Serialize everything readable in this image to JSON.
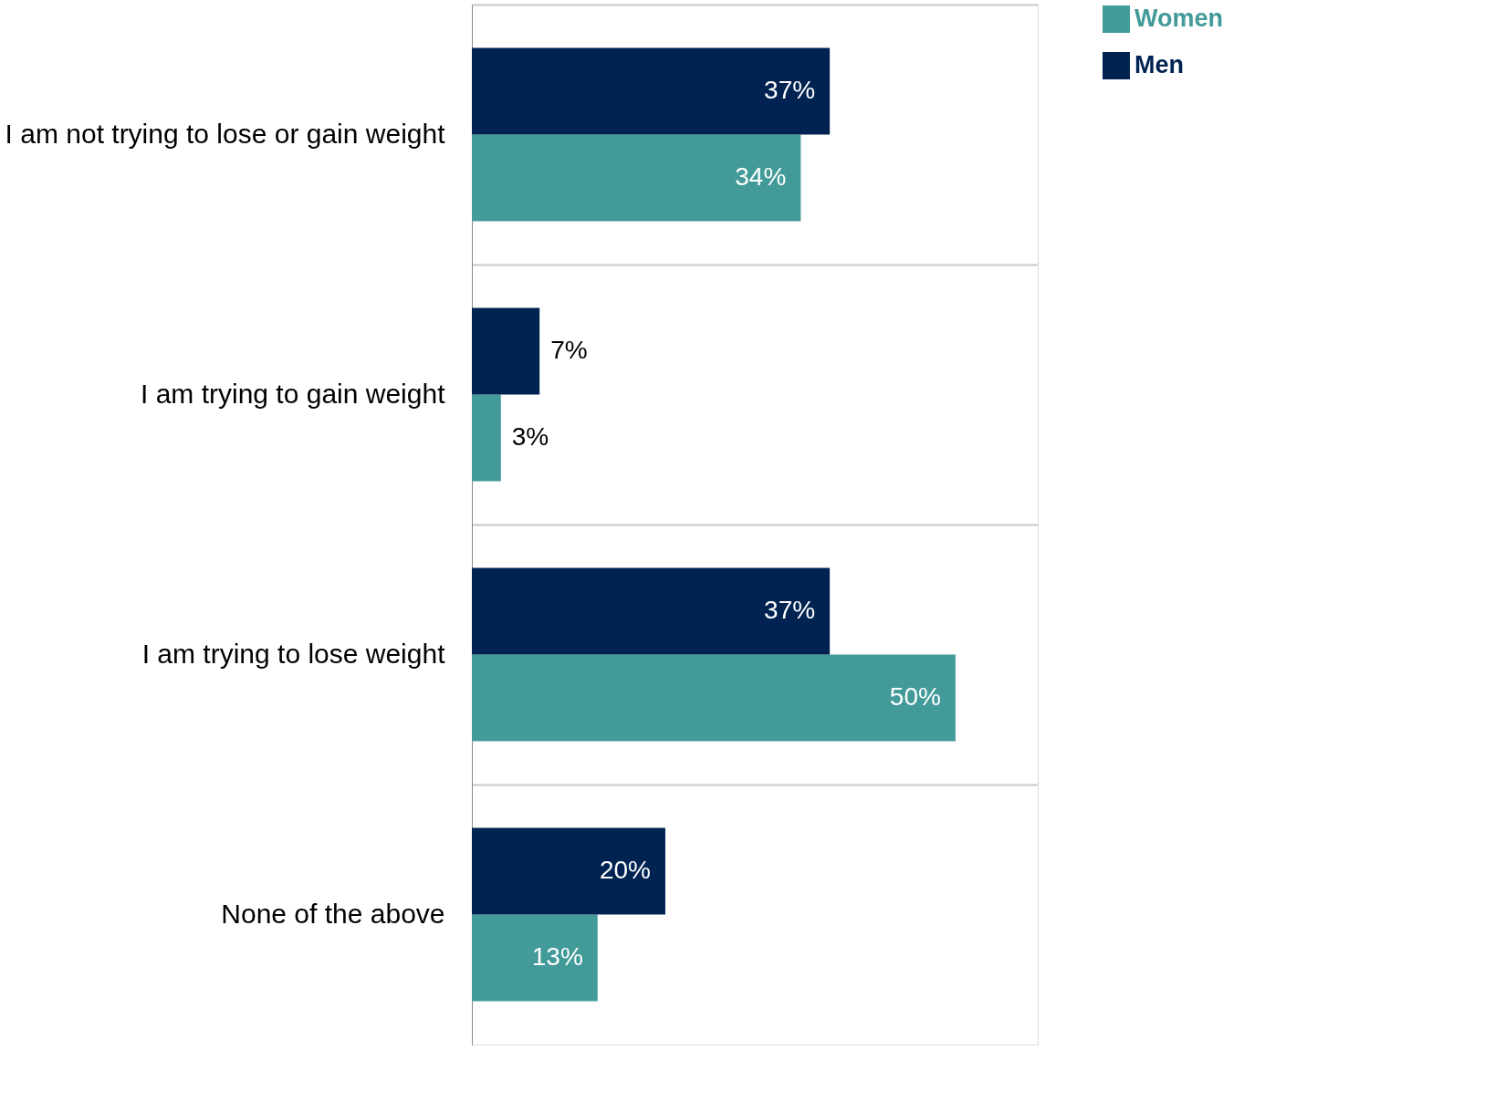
{
  "chart_data": {
    "type": "bar",
    "orientation": "horizontal",
    "categories": [
      "I am not trying to lose or gain weight",
      "I am trying to gain weight",
      "I am trying to lose weight",
      "None of the above"
    ],
    "series": [
      {
        "name": "Women",
        "color": "#429a99",
        "values": [
          34,
          3,
          50,
          13
        ],
        "value_labels": [
          "34%",
          "3%",
          "50%",
          "13%"
        ]
      },
      {
        "name": "Men",
        "color": "#002352",
        "values": [
          37,
          7,
          37,
          20
        ],
        "value_labels": [
          "37%",
          "7%",
          "37%",
          "20%"
        ]
      }
    ],
    "grid": "y",
    "legend": "top right"
  }
}
